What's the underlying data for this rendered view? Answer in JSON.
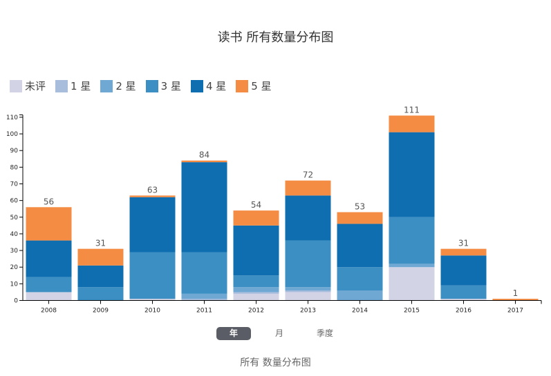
{
  "title": "读书 所有数量分布图",
  "footer": "所有 数量分布图",
  "tabs": [
    {
      "label": "年",
      "active": true
    },
    {
      "label": "月",
      "active": false
    },
    {
      "label": "季度",
      "active": false
    }
  ],
  "chart_data": {
    "type": "bar",
    "stacked": true,
    "categories": [
      "2008",
      "2009",
      "2010",
      "2011",
      "2012",
      "2013",
      "2014",
      "2015",
      "2016",
      "2017"
    ],
    "ylim": [
      0,
      111
    ],
    "yticks": [
      0,
      10,
      20,
      30,
      40,
      50,
      60,
      70,
      80,
      90,
      100,
      110
    ],
    "legend_position": "top-left",
    "grid": false,
    "totals": [
      56,
      31,
      63,
      84,
      54,
      72,
      53,
      111,
      31,
      1
    ],
    "series": [
      {
        "name": "未评",
        "color": "#d3d3e6",
        "values": [
          5,
          0,
          1,
          0,
          4,
          5,
          0,
          20,
          1,
          0
        ]
      },
      {
        "name": "1 星",
        "color": "#a8bcdc",
        "values": [
          0,
          0,
          0,
          1,
          1,
          1,
          0,
          0,
          0,
          0
        ]
      },
      {
        "name": "2 星",
        "color": "#6fa8d2",
        "values": [
          0,
          0,
          0,
          3,
          3,
          2,
          6,
          2,
          0,
          0
        ]
      },
      {
        "name": "3 星",
        "color": "#3b8fc2",
        "values": [
          9,
          8,
          28,
          25,
          7,
          28,
          14,
          28,
          8,
          0
        ]
      },
      {
        "name": "4 星",
        "color": "#0e6eb0",
        "values": [
          22,
          13,
          33,
          54,
          30,
          27,
          26,
          51,
          18,
          0
        ]
      },
      {
        "name": "5 星",
        "color": "#f48c44",
        "values": [
          20,
          10,
          1,
          1,
          9,
          9,
          7,
          10,
          4,
          1
        ]
      }
    ]
  }
}
